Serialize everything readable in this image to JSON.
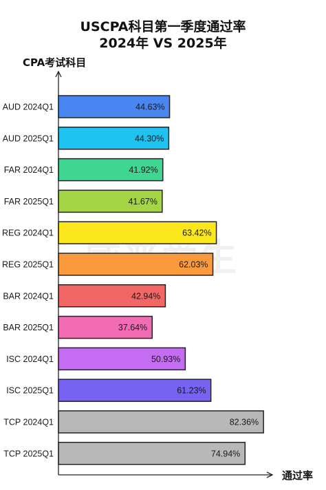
{
  "chart_data": {
    "type": "bar",
    "orientation": "horizontal",
    "title": "USCPA科目第一季度通过率",
    "subtitle": "2024年 VS 2025年",
    "ylabel": "CPA考试科目",
    "xlabel": "通过率",
    "xlim": [
      0,
      100
    ],
    "grid": false,
    "categories": [
      "AUD 2024Q1",
      "AUD 2025Q1",
      "FAR 2024Q1",
      "FAR 2025Q1",
      "REG 2024Q1",
      "REG 2025Q1",
      "BAR 2024Q1",
      "BAR 2025Q1",
      "ISC 2024Q1",
      "ISC 2025Q1",
      "TCP 2024Q1",
      "TCP 2025Q1"
    ],
    "values": [
      44.63,
      44.3,
      41.92,
      41.67,
      63.42,
      62.03,
      42.94,
      37.64,
      50.93,
      61.23,
      82.36,
      74.94
    ],
    "value_labels": [
      "44.63%",
      "44.30%",
      "41.92%",
      "41.67%",
      "63.42%",
      "62.03%",
      "42.94%",
      "37.64%",
      "50.93%",
      "61.23%",
      "82.36%",
      "74.94%"
    ],
    "colors": [
      "#4a86f0",
      "#1ec3f2",
      "#3fd691",
      "#a4d545",
      "#fce61c",
      "#fb9a3c",
      "#f26666",
      "#f26cb5",
      "#c46cf2",
      "#7763f2",
      "#b8b8b8",
      "#b8b8b8"
    ]
  },
  "watermark": "威普爱生"
}
